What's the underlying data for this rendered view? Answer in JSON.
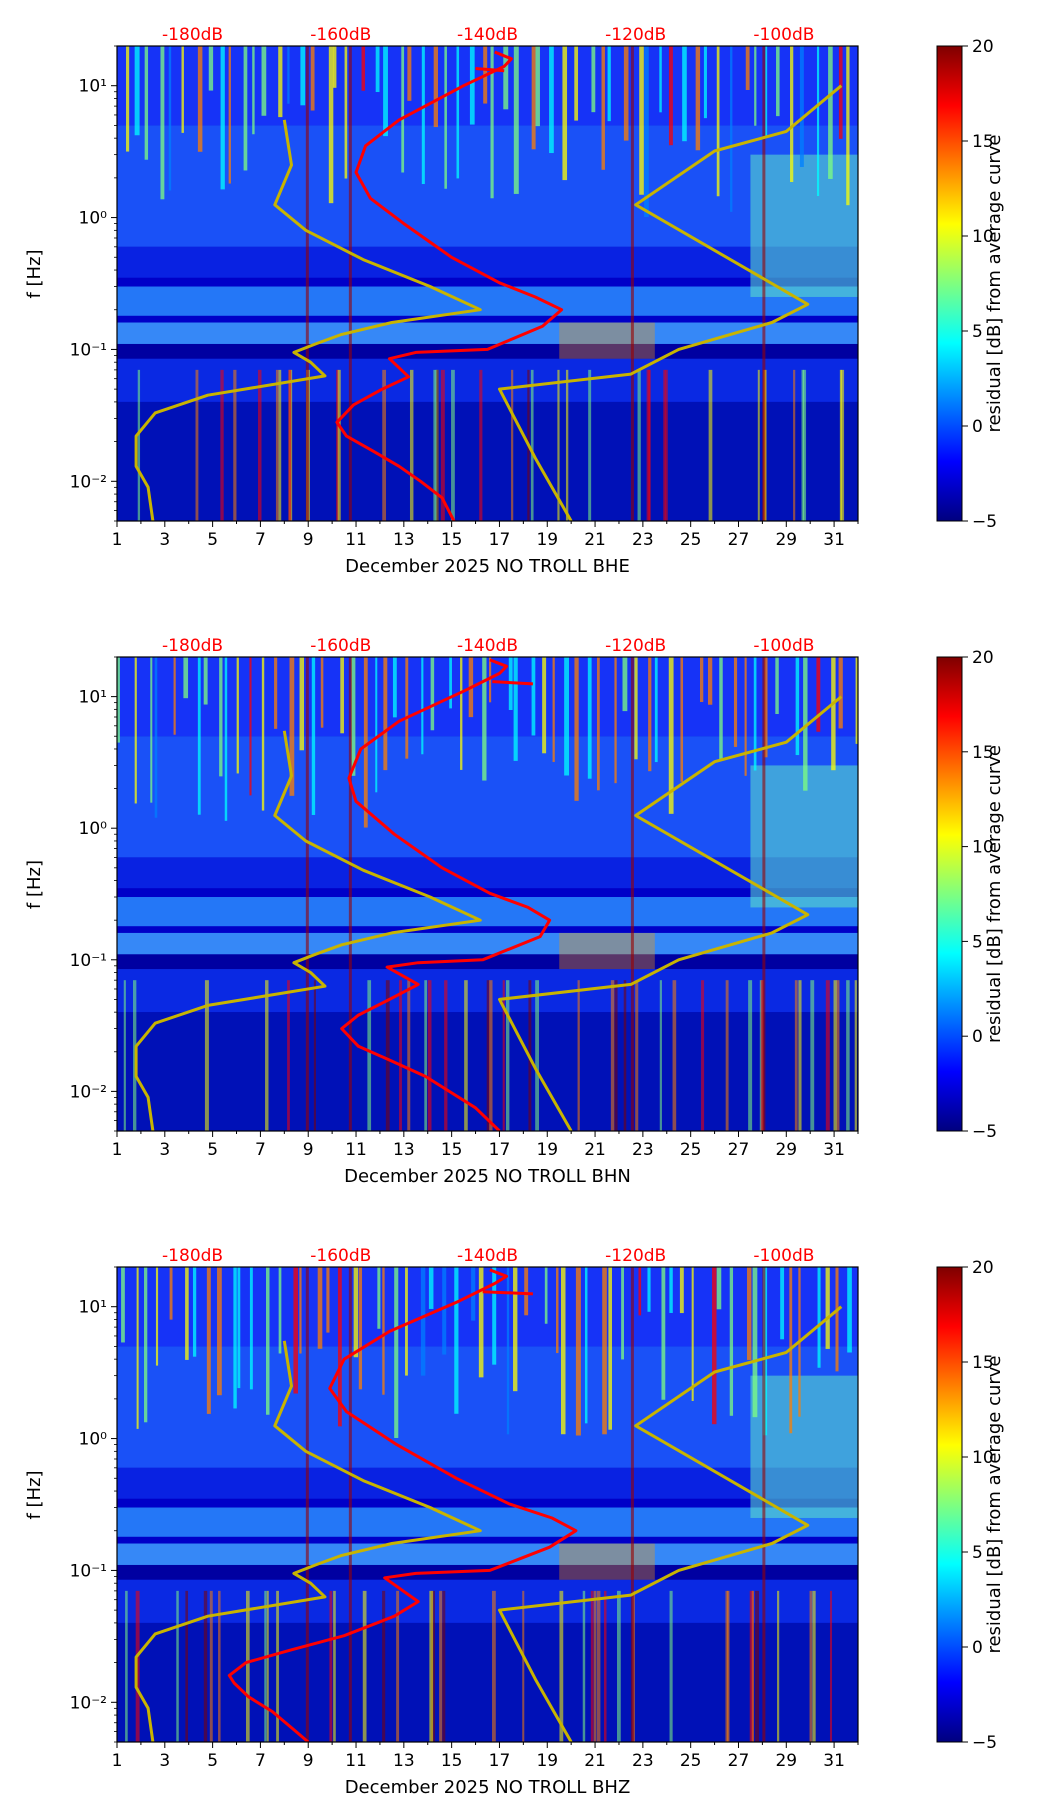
{
  "colormap": [
    "#00007f",
    "#0000ff",
    "#007fff",
    "#00ffff",
    "#7fff7f",
    "#ffff00",
    "#ff7f00",
    "#ff0000",
    "#7f0000"
  ],
  "curve_colors": {
    "station": "#ff0000",
    "noise_model": "#c8b400",
    "db_label": "#ff0000"
  },
  "chart_data": [
    {
      "type": "heatmap",
      "component": "BHE",
      "xlabel": "December 2025 NO TROLL  BHE",
      "ylabel": "f [Hz]",
      "colorbar_label": "residual [dB] from average curve",
      "x_ticks": [
        "1",
        "3",
        "5",
        "7",
        "9",
        "11",
        "13",
        "15",
        "17",
        "19",
        "21",
        "23",
        "25",
        "27",
        "29",
        "31"
      ],
      "y_ticks": [
        "10⁻²",
        "10⁻¹",
        "10⁰",
        "10¹"
      ],
      "db_ticks": [
        "-180dB",
        "-160dB",
        "-140dB",
        "-120dB",
        "-100dB"
      ],
      "colorbar_ticks": [
        "20",
        "15",
        "10",
        "5",
        "0",
        "−5"
      ],
      "xlim": [
        1,
        32
      ],
      "ylim": [
        0.005,
        20
      ],
      "clim": [
        -5,
        20
      ],
      "station_curve": [
        [
          15.1,
          0.005
        ],
        [
          14.6,
          0.0075
        ],
        [
          13.7,
          0.01
        ],
        [
          12.8,
          0.013
        ],
        [
          11.7,
          0.017
        ],
        [
          10.6,
          0.022
        ],
        [
          10.2,
          0.028
        ],
        [
          10.9,
          0.038
        ],
        [
          12.1,
          0.05
        ],
        [
          13.2,
          0.062
        ],
        [
          12.4,
          0.085
        ],
        [
          13.5,
          0.095
        ],
        [
          16.5,
          0.1
        ],
        [
          18.8,
          0.15
        ],
        [
          19.6,
          0.2
        ],
        [
          18.5,
          0.25
        ],
        [
          17,
          0.32
        ],
        [
          15,
          0.5
        ],
        [
          13,
          0.9
        ],
        [
          11.6,
          1.4
        ],
        [
          11,
          2.2
        ],
        [
          11.4,
          3.5
        ],
        [
          12.8,
          5.5
        ],
        [
          15.5,
          10
        ],
        [
          17.2,
          14
        ],
        [
          17.5,
          16
        ],
        [
          16.8,
          18
        ]
      ],
      "station_tail": [
        [
          17.2,
          13
        ],
        [
          16,
          13.5
        ]
      ],
      "noise_model": [
        [
          2.5,
          0.005
        ],
        [
          2.3,
          0.009
        ],
        [
          1.8,
          0.013
        ],
        [
          1.8,
          0.022
        ],
        [
          2.6,
          0.033
        ],
        [
          4.8,
          0.045
        ],
        [
          9.7,
          0.063
        ],
        [
          9.1,
          0.08
        ],
        [
          8.4,
          0.095
        ],
        [
          9.3,
          0.11
        ],
        [
          10.4,
          0.13
        ],
        [
          12.5,
          0.16
        ],
        [
          16.2,
          0.2
        ],
        [
          14.1,
          0.3
        ],
        [
          11.3,
          0.48
        ],
        [
          8.9,
          0.8
        ],
        [
          7.6,
          1.25
        ],
        [
          8.3,
          2.5
        ],
        [
          8.0,
          5.5
        ]
      ],
      "noise_model_right": [
        [
          20.0,
          0.005
        ],
        [
          18.5,
          0.015
        ],
        [
          17.0,
          0.05
        ],
        [
          22.5,
          0.065
        ],
        [
          24.5,
          0.1
        ],
        [
          28.4,
          0.16
        ],
        [
          29.9,
          0.22
        ],
        [
          22.7,
          1.25
        ],
        [
          26.0,
          3.2
        ],
        [
          29.0,
          4.5
        ],
        [
          31.3,
          10
        ]
      ]
    },
    {
      "type": "heatmap",
      "component": "BHN",
      "xlabel": "December 2025 NO TROLL  BHN",
      "ylabel": "f [Hz]",
      "colorbar_label": "residual [dB] from average curve",
      "x_ticks": [
        "1",
        "3",
        "5",
        "7",
        "9",
        "11",
        "13",
        "15",
        "17",
        "19",
        "21",
        "23",
        "25",
        "27",
        "29",
        "31"
      ],
      "y_ticks": [
        "10⁻²",
        "10⁻¹",
        "10⁰",
        "10¹"
      ],
      "db_ticks": [
        "-180dB",
        "-160dB",
        "-140dB",
        "-120dB",
        "-100dB"
      ],
      "colorbar_ticks": [
        "20",
        "15",
        "10",
        "5",
        "0",
        "−5"
      ],
      "xlim": [
        1,
        32
      ],
      "ylim": [
        0.005,
        20
      ],
      "clim": [
        -5,
        20
      ],
      "station_curve": [
        [
          17,
          0.005
        ],
        [
          16,
          0.0075
        ],
        [
          14.9,
          0.01
        ],
        [
          13.9,
          0.013
        ],
        [
          12.5,
          0.017
        ],
        [
          11.1,
          0.022
        ],
        [
          10.4,
          0.03
        ],
        [
          11.1,
          0.038
        ],
        [
          12.4,
          0.05
        ],
        [
          13.6,
          0.065
        ],
        [
          12.3,
          0.088
        ],
        [
          13.6,
          0.095
        ],
        [
          16.3,
          0.1
        ],
        [
          18.7,
          0.15
        ],
        [
          19.1,
          0.2
        ],
        [
          18.2,
          0.25
        ],
        [
          16.6,
          0.32
        ],
        [
          14.6,
          0.5
        ],
        [
          12.6,
          0.9
        ],
        [
          11,
          1.6
        ],
        [
          10.7,
          2.4
        ],
        [
          11.2,
          4
        ],
        [
          12.8,
          6.5
        ],
        [
          15.5,
          11
        ],
        [
          17,
          15
        ],
        [
          17.3,
          17
        ],
        [
          16.6,
          19
        ]
      ],
      "station_tail": [
        [
          18.4,
          12.5
        ],
        [
          16.7,
          13
        ]
      ],
      "noise_model": [
        [
          2.5,
          0.005
        ],
        [
          2.3,
          0.009
        ],
        [
          1.8,
          0.013
        ],
        [
          1.8,
          0.022
        ],
        [
          2.6,
          0.033
        ],
        [
          4.8,
          0.045
        ],
        [
          9.7,
          0.063
        ],
        [
          9.1,
          0.08
        ],
        [
          8.4,
          0.095
        ],
        [
          9.3,
          0.11
        ],
        [
          10.4,
          0.13
        ],
        [
          12.5,
          0.16
        ],
        [
          16.2,
          0.2
        ],
        [
          14.1,
          0.3
        ],
        [
          11.3,
          0.48
        ],
        [
          8.9,
          0.8
        ],
        [
          7.6,
          1.25
        ],
        [
          8.3,
          2.5
        ],
        [
          8.0,
          5.5
        ]
      ],
      "noise_model_right": [
        [
          20.0,
          0.005
        ],
        [
          18.5,
          0.015
        ],
        [
          17.0,
          0.05
        ],
        [
          22.5,
          0.065
        ],
        [
          24.5,
          0.1
        ],
        [
          28.4,
          0.16
        ],
        [
          29.9,
          0.22
        ],
        [
          22.7,
          1.25
        ],
        [
          26.0,
          3.2
        ],
        [
          29.0,
          4.5
        ],
        [
          31.3,
          10
        ]
      ]
    },
    {
      "type": "heatmap",
      "component": "BHZ",
      "xlabel": "December 2025 NO TROLL  BHZ",
      "ylabel": "f [Hz]",
      "colorbar_label": "residual [dB] from average curve",
      "x_ticks": [
        "1",
        "3",
        "5",
        "7",
        "9",
        "11",
        "13",
        "15",
        "17",
        "19",
        "21",
        "23",
        "25",
        "27",
        "29",
        "31"
      ],
      "y_ticks": [
        "10⁻²",
        "10⁻¹",
        "10⁰",
        "10¹"
      ],
      "db_ticks": [
        "-180dB",
        "-160dB",
        "-140dB",
        "-120dB",
        "-100dB"
      ],
      "colorbar_ticks": [
        "20",
        "15",
        "10",
        "5",
        "0",
        "−5"
      ],
      "xlim": [
        1,
        32
      ],
      "ylim": [
        0.005,
        20
      ],
      "clim": [
        -5,
        20
      ],
      "station_curve": [
        [
          9,
          0.005
        ],
        [
          8.4,
          0.0062
        ],
        [
          7.5,
          0.0085
        ],
        [
          6.5,
          0.011
        ],
        [
          5.9,
          0.014
        ],
        [
          5.7,
          0.016
        ],
        [
          6.4,
          0.02
        ],
        [
          8.3,
          0.025
        ],
        [
          10.5,
          0.032
        ],
        [
          12.6,
          0.045
        ],
        [
          13.6,
          0.058
        ],
        [
          12.2,
          0.088
        ],
        [
          13.5,
          0.095
        ],
        [
          16.6,
          0.1
        ],
        [
          19.1,
          0.15
        ],
        [
          20.2,
          0.2
        ],
        [
          19.2,
          0.25
        ],
        [
          17.4,
          0.32
        ],
        [
          15.2,
          0.5
        ],
        [
          12.7,
          0.9
        ],
        [
          10.6,
          1.6
        ],
        [
          9.9,
          2.4
        ],
        [
          10.5,
          4
        ],
        [
          12.4,
          6.5
        ],
        [
          15.3,
          11
        ],
        [
          16.8,
          15
        ],
        [
          17.3,
          17
        ],
        [
          16.6,
          19
        ]
      ],
      "station_tail": [
        [
          18.4,
          12.5
        ],
        [
          16.3,
          13
        ]
      ],
      "noise_model": [
        [
          2.5,
          0.005
        ],
        [
          2.3,
          0.009
        ],
        [
          1.8,
          0.013
        ],
        [
          1.8,
          0.022
        ],
        [
          2.6,
          0.033
        ],
        [
          4.8,
          0.045
        ],
        [
          9.7,
          0.063
        ],
        [
          9.1,
          0.08
        ],
        [
          8.4,
          0.095
        ],
        [
          9.3,
          0.11
        ],
        [
          10.4,
          0.13
        ],
        [
          12.5,
          0.16
        ],
        [
          16.2,
          0.2
        ],
        [
          14.1,
          0.3
        ],
        [
          11.3,
          0.48
        ],
        [
          8.9,
          0.8
        ],
        [
          7.6,
          1.25
        ],
        [
          8.3,
          2.5
        ],
        [
          8.0,
          5.5
        ]
      ],
      "noise_model_right": [
        [
          20.0,
          0.005
        ],
        [
          18.5,
          0.015
        ],
        [
          17.0,
          0.05
        ],
        [
          22.5,
          0.065
        ],
        [
          24.5,
          0.1
        ],
        [
          28.4,
          0.16
        ],
        [
          29.9,
          0.22
        ],
        [
          22.7,
          1.25
        ],
        [
          26.0,
          3.2
        ],
        [
          29.0,
          4.5
        ],
        [
          31.3,
          10
        ]
      ]
    }
  ]
}
